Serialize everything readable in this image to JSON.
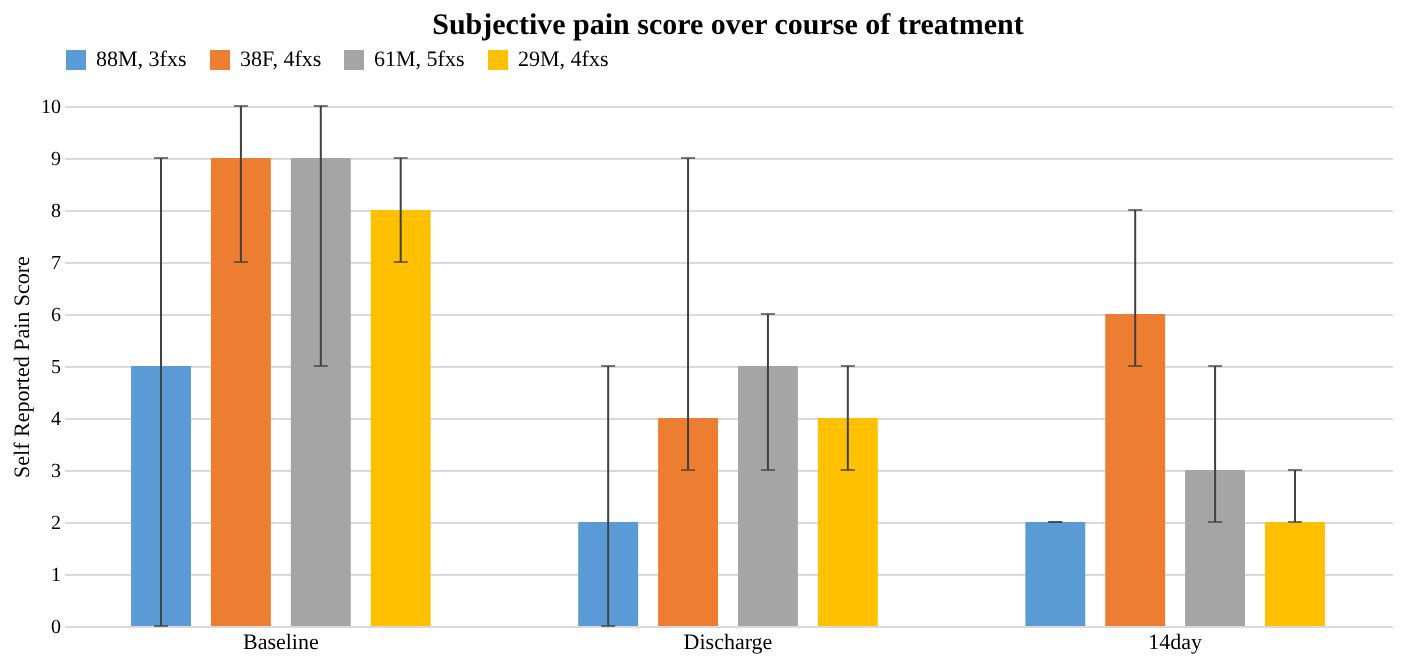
{
  "chart_data": {
    "type": "bar",
    "title": "Subjective pain score over course of treatment",
    "ylabel": "Self Reported  Pain Score",
    "categories": [
      "Baseline",
      "Discharge",
      "14day"
    ],
    "series": [
      {
        "name": "88M, 3fxs",
        "color": "#5b9bd5",
        "values": [
          5,
          2,
          2
        ],
        "errors": [
          [
            0,
            9
          ],
          [
            0,
            5
          ],
          [
            2,
            2
          ]
        ]
      },
      {
        "name": "38F, 4fxs",
        "color": "#ed7d31",
        "values": [
          9,
          4,
          6
        ],
        "errors": [
          [
            7,
            10
          ],
          [
            3,
            9
          ],
          [
            5,
            8
          ]
        ]
      },
      {
        "name": "61M, 5fxs",
        "color": "#a5a5a5",
        "values": [
          9,
          5,
          3
        ],
        "errors": [
          [
            5,
            10
          ],
          [
            3,
            6
          ],
          [
            2,
            5
          ]
        ]
      },
      {
        "name": "29M, 4fxs",
        "color": "#ffc000",
        "values": [
          8,
          4,
          2
        ],
        "errors": [
          [
            7,
            9
          ],
          [
            3,
            5
          ],
          [
            2,
            3
          ]
        ]
      }
    ],
    "ylim": [
      0,
      10
    ],
    "yticks": [
      0,
      1,
      2,
      3,
      4,
      5,
      6,
      7,
      8,
      9,
      10
    ],
    "grid": "y",
    "legend": "top"
  }
}
